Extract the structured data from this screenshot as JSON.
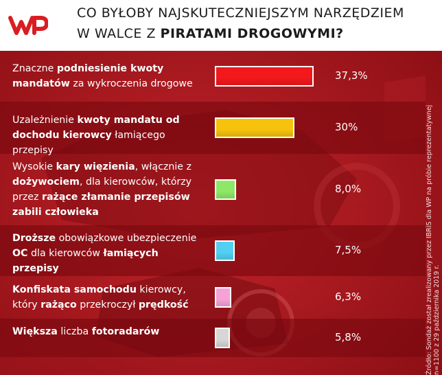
{
  "brand": {
    "logo_text": "WP",
    "accent": "#d81e22",
    "background": "#a8151b"
  },
  "title": {
    "line1": "CO BYŁOBY NAJSKUTECZNIEJSZYM NARZĘDZIEM",
    "line2_prefix": "W WALCE Z ",
    "line2_bold": "PIRATAMI DROGOWYMI?"
  },
  "chart_data": {
    "type": "bar",
    "orientation": "horizontal",
    "title": "CO BYŁOBY NAJSKUTECZNIEJSZYM NARZĘDZIEM W WALCE Z PIRATAMI DROGOWYMI?",
    "unit": "%",
    "categories": [
      "Znaczne podniesienie kwoty mandatów za wykroczenia drogowe",
      "Uzależnienie kwoty mandatu od dochodu kierowcy łamiącego przepisy",
      "Wysokie kary więzienia, włącznie z dożywociem, dla kierowców, którzy przez rażące złamanie przepisów zabili człowieka",
      "Droższe obowiązkowe ubezpieczenie OC dla kierowców łamiących przepisy",
      "Konfiskata samochodu kierowcy, który rażąco przekroczył prędkość",
      "Większa liczba fotoradarów"
    ],
    "values": [
      37.3,
      30,
      8.0,
      7.5,
      6.3,
      5.8
    ],
    "value_labels": [
      "37,3%",
      "30%",
      "8,0%",
      "7,5%",
      "6,3%",
      "5,8%"
    ],
    "colors": [
      "#f2181c",
      "#f6c20c",
      "#8ee868",
      "#52cff2",
      "#f6a2d8",
      "#d6d6d6"
    ],
    "grid": false,
    "legend": "none"
  },
  "rows": [
    {
      "segments": [
        {
          "t": "Znaczne ",
          "b": false
        },
        {
          "t": "podniesienie kwoty mandatów",
          "b": true
        },
        {
          "t": " za wykroczenia drogowe",
          "b": false
        }
      ]
    },
    {
      "segments": [
        {
          "t": "Uzależnienie ",
          "b": false
        },
        {
          "t": "kwoty mandatu od dochodu kierowcy",
          "b": true
        },
        {
          "t": " łamiącego przepisy",
          "b": false
        }
      ]
    },
    {
      "segments": [
        {
          "t": "Wysokie ",
          "b": false
        },
        {
          "t": "kary więzienia",
          "b": true
        },
        {
          "t": ", włącznie z ",
          "b": false
        },
        {
          "t": "dożywociem",
          "b": true
        },
        {
          "t": ", dla kierowców, którzy przez ",
          "b": false
        },
        {
          "t": "rażące złamanie przepisów zabili człowieka",
          "b": true
        }
      ]
    },
    {
      "segments": [
        {
          "t": "Droższe",
          "b": true
        },
        {
          "t": " obowiązkowe ubezpieczenie ",
          "b": false
        },
        {
          "t": "OC",
          "b": true
        },
        {
          "t": " dla kierowców ",
          "b": false
        },
        {
          "t": "łamiących przepisy",
          "b": true
        }
      ]
    },
    {
      "segments": [
        {
          "t": "Konfiskata samochodu",
          "b": true
        },
        {
          "t": " kierowcy, który ",
          "b": false
        },
        {
          "t": "rażąco",
          "b": true
        },
        {
          "t": " przekroczył ",
          "b": false
        },
        {
          "t": "prędkość",
          "b": true
        }
      ]
    },
    {
      "segments": [
        {
          "t": "Większa",
          "b": true
        },
        {
          "t": " liczba ",
          "b": false
        },
        {
          "t": "fotoradarów",
          "b": true
        }
      ]
    }
  ],
  "source": {
    "line1": "Źródło: Sondaż został zrealizowany przez IBRiS dla WP na próbie reprezentatywnej",
    "line2": "n=1100 z 29 października 2019 r."
  }
}
